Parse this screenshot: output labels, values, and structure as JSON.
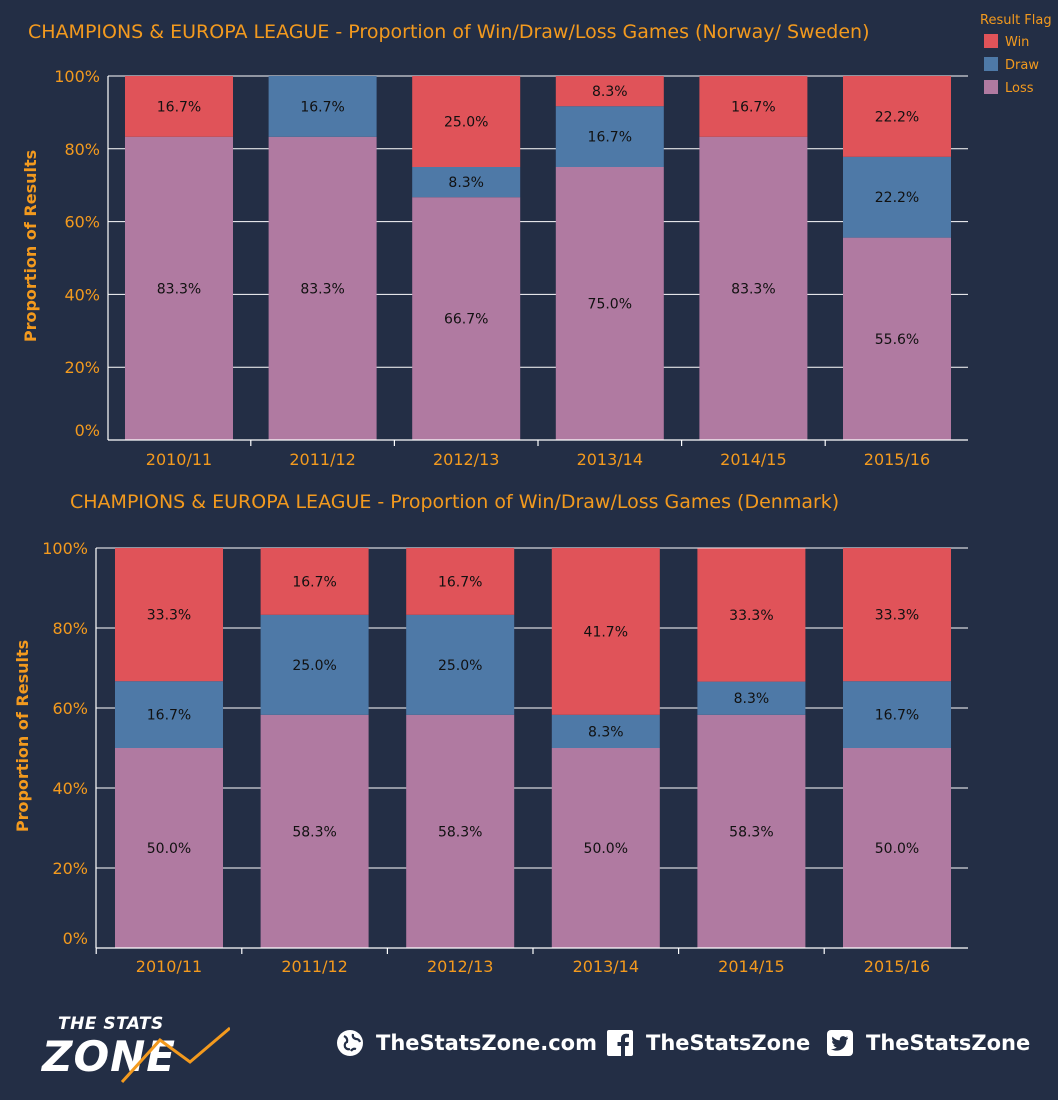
{
  "colors": {
    "win": "#e05359",
    "draw": "#4e79a7",
    "loss": "#b07aa1",
    "accent": "#f39a1e",
    "background": "#232e45"
  },
  "legend": {
    "title": "Result Flag",
    "items": [
      {
        "key": "win",
        "label": "Win"
      },
      {
        "key": "draw",
        "label": "Draw"
      },
      {
        "key": "loss",
        "label": "Loss"
      }
    ]
  },
  "chart_data": [
    {
      "type": "bar",
      "stacked": true,
      "title": "CHAMPIONS & EUROPA LEAGUE - Proportion of Win/Draw/Loss Games (Norway/ Sweden)",
      "ylabel": "Proportion of Results",
      "xlabel": "",
      "ylim": [
        0,
        100
      ],
      "yticks": [
        "0%",
        "20%",
        "40%",
        "60%",
        "80%",
        "100%"
      ],
      "categories": [
        "2010/11",
        "2011/12",
        "2012/13",
        "2013/14",
        "2014/15",
        "2015/16"
      ],
      "series": [
        {
          "name": "Loss",
          "key": "loss",
          "values": [
            83.3,
            83.3,
            66.7,
            75.0,
            83.3,
            55.6
          ],
          "labels": [
            "83.3%",
            "83.3%",
            "66.7%",
            "75.0%",
            "83.3%",
            "55.6%"
          ]
        },
        {
          "name": "Draw",
          "key": "draw",
          "values": [
            0,
            16.7,
            8.3,
            16.7,
            0,
            22.2
          ],
          "labels": [
            "",
            "16.7%",
            "8.3%",
            "16.7%",
            "",
            "22.2%"
          ]
        },
        {
          "name": "Win",
          "key": "win",
          "values": [
            16.7,
            0,
            25.0,
            8.3,
            16.7,
            22.2
          ],
          "labels": [
            "16.7%",
            "",
            "25.0%",
            "8.3%",
            "16.7%",
            "22.2%"
          ]
        }
      ],
      "grid": true,
      "legend_position": "top-right"
    },
    {
      "type": "bar",
      "stacked": true,
      "title": "CHAMPIONS & EUROPA LEAGUE - Proportion of Win/Draw/Loss Games (Denmark)",
      "ylabel": "Proportion of Results",
      "xlabel": "",
      "ylim": [
        0,
        100
      ],
      "yticks": [
        "0%",
        "20%",
        "40%",
        "60%",
        "80%",
        "100%"
      ],
      "categories": [
        "2010/11",
        "2011/12",
        "2012/13",
        "2013/14",
        "2014/15",
        "2015/16"
      ],
      "series": [
        {
          "name": "Loss",
          "key": "loss",
          "values": [
            50.0,
            58.3,
            58.3,
            50.0,
            58.3,
            50.0
          ],
          "labels": [
            "50.0%",
            "58.3%",
            "58.3%",
            "50.0%",
            "58.3%",
            "50.0%"
          ]
        },
        {
          "name": "Draw",
          "key": "draw",
          "values": [
            16.7,
            25.0,
            25.0,
            8.3,
            8.3,
            16.7
          ],
          "labels": [
            "16.7%",
            "25.0%",
            "25.0%",
            "8.3%",
            "8.3%",
            "16.7%"
          ]
        },
        {
          "name": "Win",
          "key": "win",
          "values": [
            33.3,
            16.7,
            16.7,
            41.7,
            33.3,
            33.3
          ],
          "labels": [
            "33.3%",
            "16.7%",
            "16.7%",
            "41.7%",
            "33.3%",
            "33.3%"
          ]
        }
      ],
      "grid": true
    }
  ],
  "footer": {
    "logo_line1": "THE STATS",
    "logo_line2": "ZONE",
    "website": "TheStatsZone.com",
    "facebook": "TheStatsZone",
    "twitter": "TheStatsZone",
    "icons": [
      "globe-icon",
      "facebook-icon",
      "twitter-icon"
    ]
  }
}
